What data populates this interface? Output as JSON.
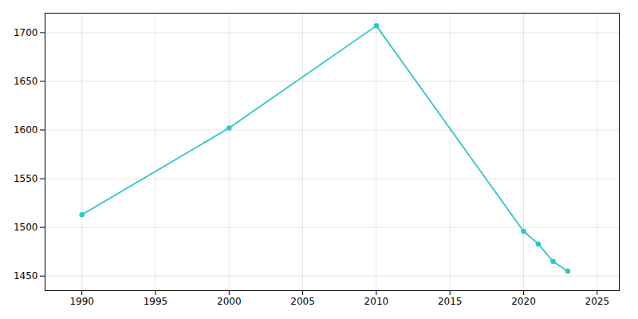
{
  "chart_data": {
    "type": "line",
    "x": [
      1990,
      2000,
      2010,
      2020,
      2021,
      2022,
      2023
    ],
    "values": [
      1513,
      1602,
      1707,
      1496,
      1483,
      1465,
      1455
    ],
    "color": "#2dc6c8",
    "marker": "circle",
    "xlim": [
      1987.5,
      2026.5
    ],
    "ylim": [
      1435,
      1720
    ],
    "xticks": [
      1990,
      1995,
      2000,
      2005,
      2010,
      2015,
      2020,
      2025
    ],
    "yticks": [
      1450,
      1500,
      1550,
      1600,
      1650,
      1700
    ],
    "grid": true
  }
}
